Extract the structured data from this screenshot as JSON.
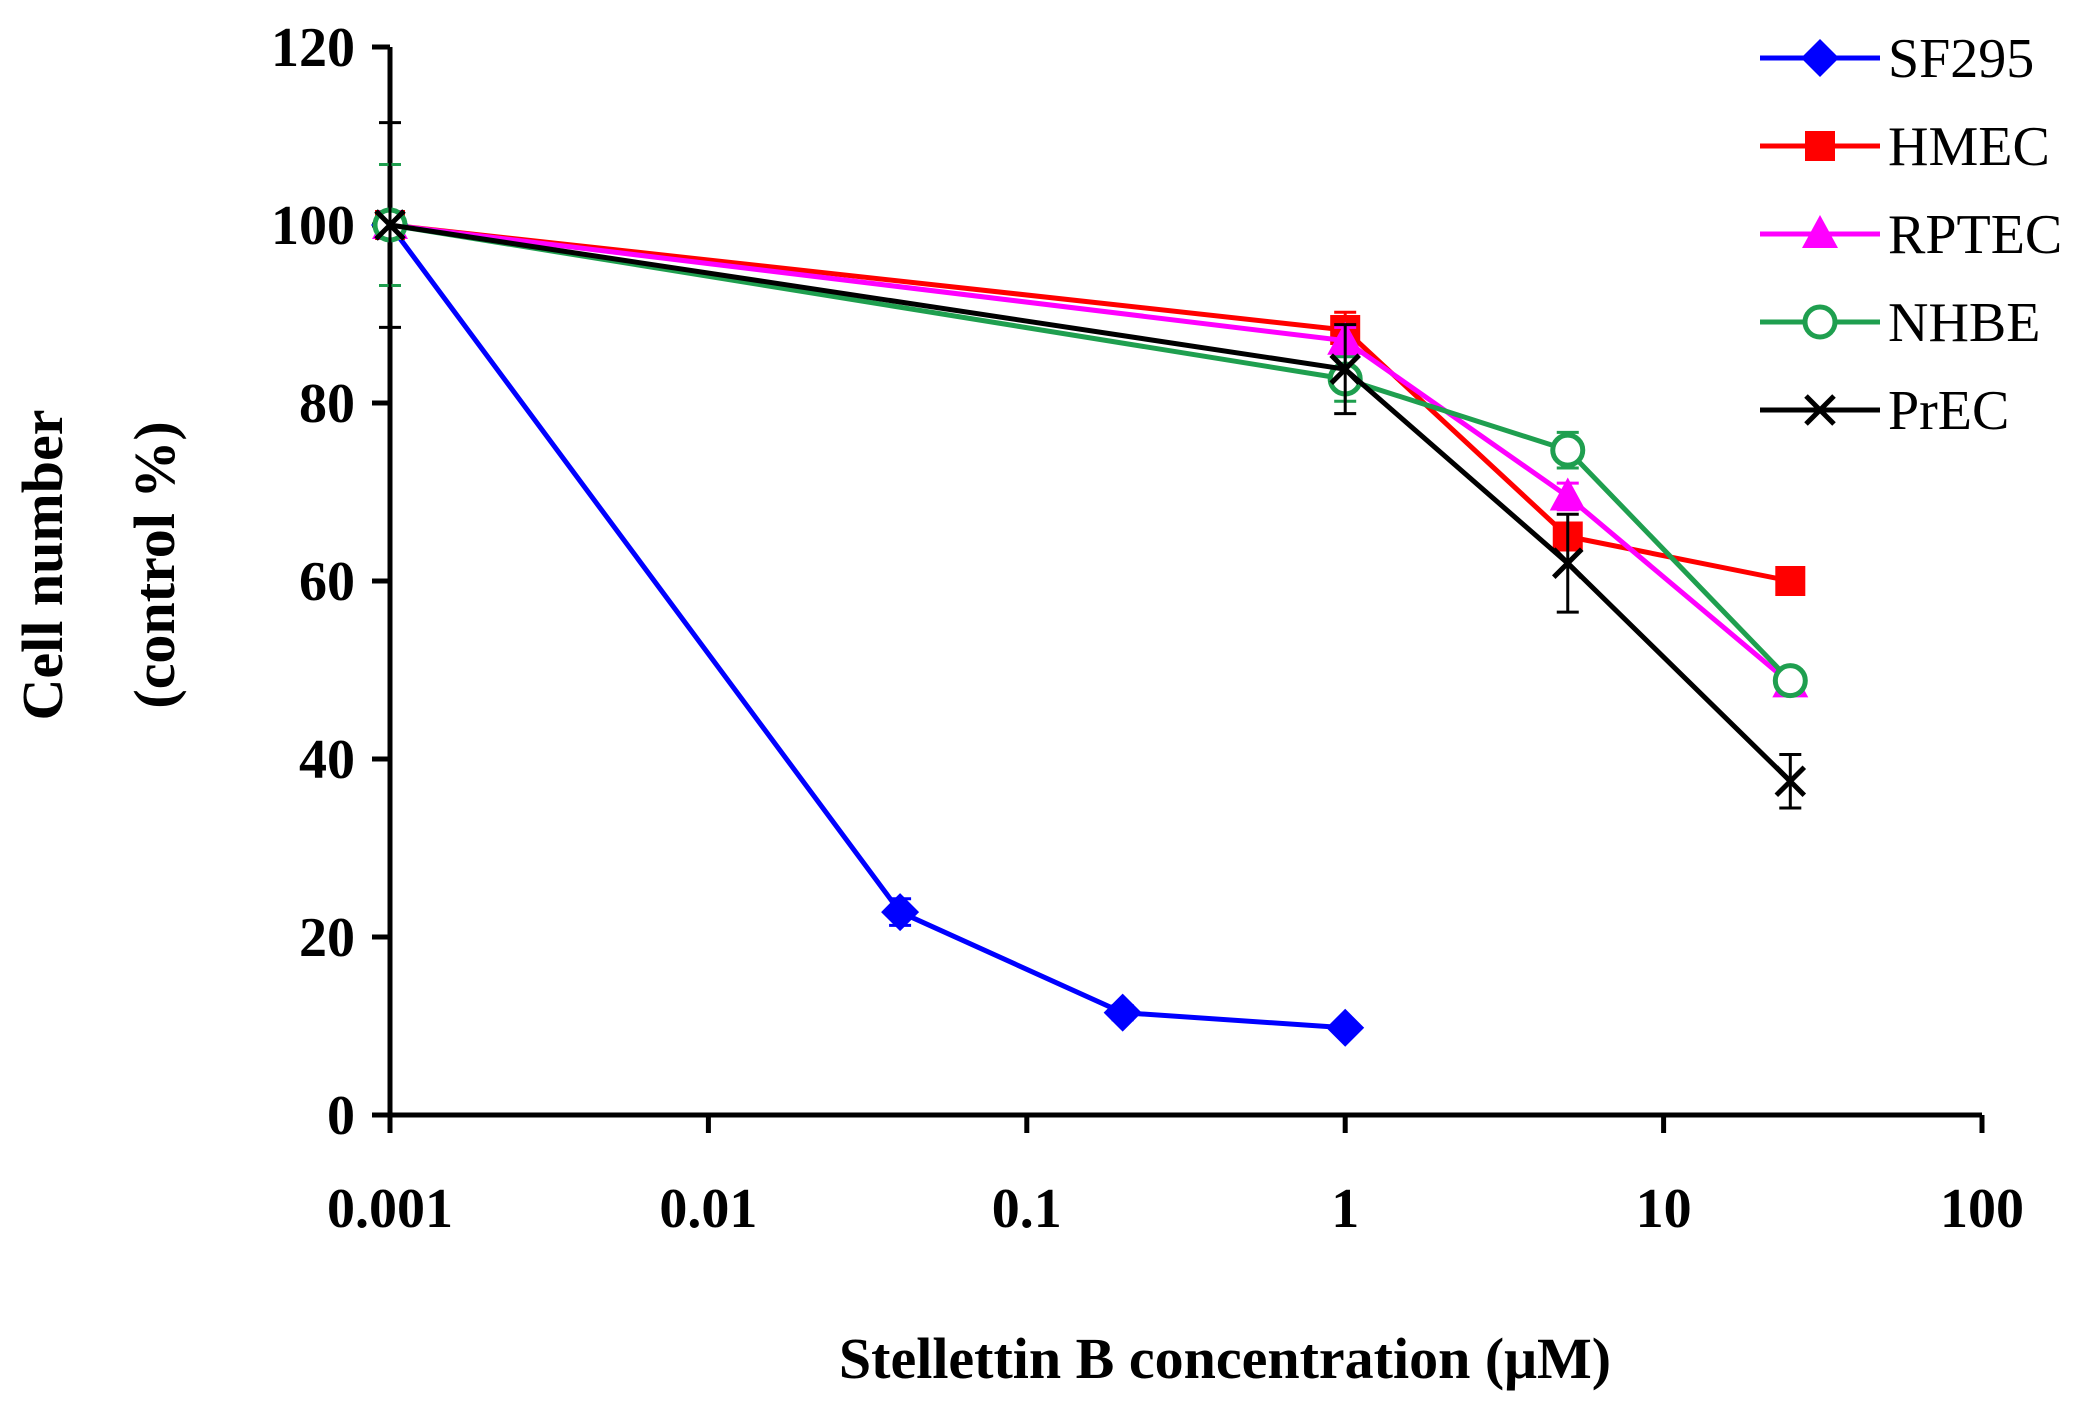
{
  "chart_data": {
    "type": "line",
    "xscale": "log",
    "xlabel": "Stellettin B concentration (μM)",
    "ylabel_line1": "Cell number",
    "ylabel_line2": "(control %)",
    "xlim": [
      0.001,
      100
    ],
    "ylim": [
      0,
      120
    ],
    "xticks": [
      {
        "value": 0.001,
        "label": "0.001"
      },
      {
        "value": 0.01,
        "label": "0.01"
      },
      {
        "value": 0.1,
        "label": "0.1"
      },
      {
        "value": 1,
        "label": "1"
      },
      {
        "value": 10,
        "label": "10"
      },
      {
        "value": 100,
        "label": "100"
      }
    ],
    "yticks": [
      {
        "value": 0,
        "label": "0"
      },
      {
        "value": 20,
        "label": "20"
      },
      {
        "value": 40,
        "label": "40"
      },
      {
        "value": 60,
        "label": "60"
      },
      {
        "value": 80,
        "label": "80"
      },
      {
        "value": 100,
        "label": "100"
      },
      {
        "value": 120,
        "label": "120"
      }
    ],
    "legend_position": "top-right",
    "series": [
      {
        "name": "SF295",
        "color": "#0000ff",
        "marker": "diamond",
        "x": [
          0.001,
          0.04,
          0.2,
          1
        ],
        "y": [
          100,
          22.8,
          11.5,
          9.8
        ],
        "err": [
          1.0,
          1.5,
          0.8,
          0.6
        ]
      },
      {
        "name": "HMEC",
        "color": "#ff0000",
        "marker": "square",
        "x": [
          0.001,
          1,
          5,
          25
        ],
        "y": [
          100,
          88.2,
          65,
          60
        ],
        "err": [
          1.0,
          2.0,
          1.5,
          1.5
        ]
      },
      {
        "name": "RPTEC",
        "color": "#ff00ff",
        "marker": "triangle",
        "x": [
          0.001,
          1,
          5,
          25
        ],
        "y": [
          100,
          87,
          69.5,
          48.5
        ],
        "err": [
          1.5,
          1.5,
          1.5,
          1.2
        ]
      },
      {
        "name": "NHBE",
        "color": "#1f9f4f",
        "marker": "circle-open",
        "x": [
          0.001,
          1,
          5,
          25
        ],
        "y": [
          100,
          82.7,
          74.7,
          48.8
        ],
        "err": [
          6.8,
          2.5,
          2.0,
          1.2
        ]
      },
      {
        "name": "PrEC",
        "color": "#000000",
        "marker": "x",
        "x": [
          0.001,
          1,
          5,
          25
        ],
        "y": [
          100,
          83.8,
          62,
          37.5
        ],
        "err": [
          11.5,
          5.0,
          5.5,
          3.0
        ]
      }
    ]
  }
}
